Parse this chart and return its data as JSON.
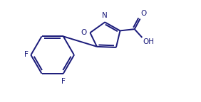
{
  "background_color": "#ffffff",
  "line_color": "#1a1a7a",
  "text_color": "#1a1a7a",
  "line_width": 1.4,
  "font_size": 7.5,
  "figsize": [
    2.82,
    1.44
  ],
  "dpi": 100,
  "xlim": [
    0,
    10
  ],
  "ylim": [
    0,
    5
  ]
}
